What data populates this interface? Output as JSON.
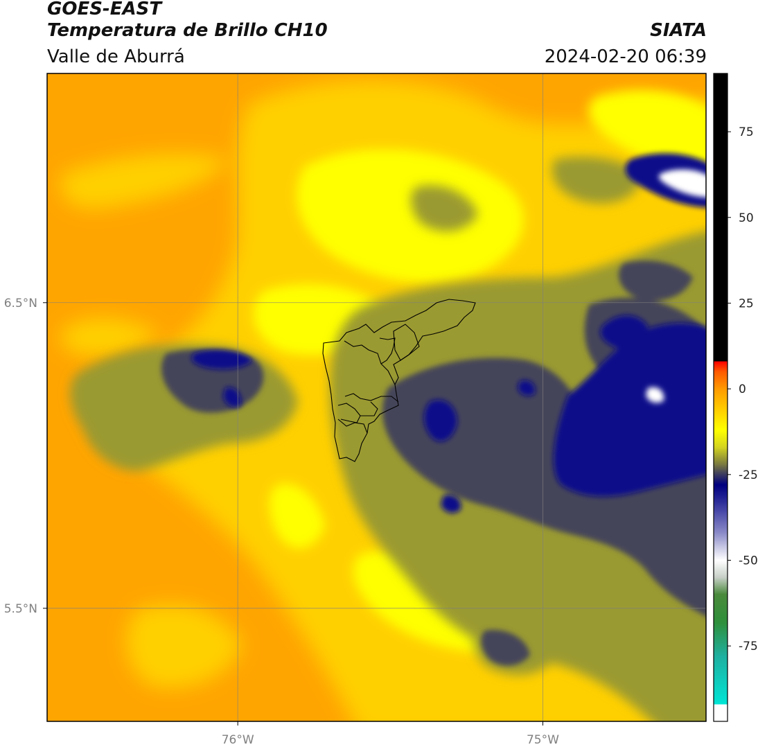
{
  "header": {
    "satellite": "GOES-EAST",
    "product": "Temperatura de Brillo CH10",
    "region": "Valle de Aburrá",
    "agency": "SIATA",
    "datetime": "2024-02-20 06:39"
  },
  "map": {
    "lon_range": [
      -76.625,
      -74.465
    ],
    "lat_range": [
      5.13,
      7.25
    ],
    "x_ticks": [
      {
        "value": -76,
        "label": "76°W"
      },
      {
        "value": -75,
        "label": "75°W"
      }
    ],
    "y_ticks": [
      {
        "value": 6.5,
        "label": "6.5°N"
      },
      {
        "value": 5.5,
        "label": "5.5°N"
      }
    ],
    "gridlines": true
  },
  "colorbar": {
    "range": [
      -97,
      92
    ],
    "ticks": [
      75,
      50,
      25,
      0,
      -25,
      -50,
      -75
    ],
    "stops": [
      {
        "value": -97,
        "color": "#ffffff"
      },
      {
        "value": -92,
        "color": "#ffffff"
      },
      {
        "value": -92,
        "color": "#00e5d5"
      },
      {
        "value": -78,
        "color": "#1fb0a0"
      },
      {
        "value": -68,
        "color": "#2f8f3a"
      },
      {
        "value": -60,
        "color": "#4a8a3c"
      },
      {
        "value": -55,
        "color": "#c7cfc7"
      },
      {
        "value": -50,
        "color": "#ffffff"
      },
      {
        "value": -42,
        "color": "#8a8ac8"
      },
      {
        "value": -33,
        "color": "#2d2d9a"
      },
      {
        "value": -28,
        "color": "#000080"
      },
      {
        "value": -25,
        "color": "#3a3a60"
      },
      {
        "value": -22,
        "color": "#7a7a40"
      },
      {
        "value": -17,
        "color": "#d4d420"
      },
      {
        "value": -12,
        "color": "#ffff00"
      },
      {
        "value": -5,
        "color": "#ffc400"
      },
      {
        "value": 0,
        "color": "#ff9a00"
      },
      {
        "value": 5,
        "color": "#ff5a00"
      },
      {
        "value": 8,
        "color": "#ff0000"
      },
      {
        "value": 8,
        "color": "#000000"
      },
      {
        "value": 92,
        "color": "#000000"
      }
    ]
  },
  "palette": {
    "orange": "#ffa500",
    "yellow": "#ffd000",
    "bright_yellow": "#ffff00",
    "olive": "#9a9a30",
    "dark_gray": "#45455a",
    "navy": "#10108a",
    "white": "#ffffff"
  }
}
